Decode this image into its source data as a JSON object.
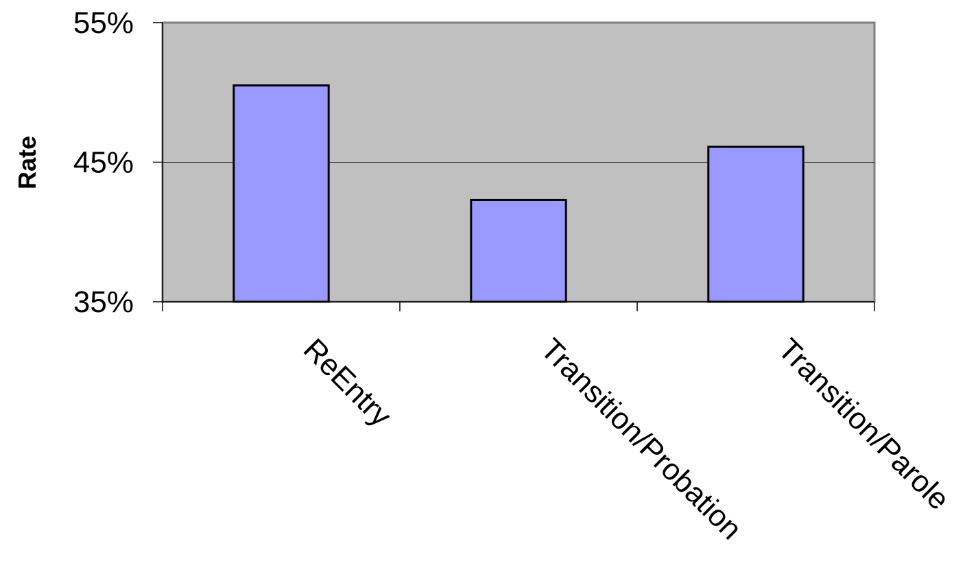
{
  "chart_data": {
    "type": "bar",
    "title": "",
    "xlabel": "",
    "ylabel": "Rate",
    "categories": [
      "ReEntry",
      "Transition/Probation",
      "Transition/Parole"
    ],
    "values": [
      50.5,
      42.3,
      46.1
    ],
    "ylim": [
      35,
      55
    ],
    "yticks": [
      35,
      45,
      55
    ],
    "ytick_labels": [
      "35%",
      "45%",
      "55%"
    ],
    "grid": true,
    "legend": "none",
    "colors": {
      "bar_fill": "#9999ff",
      "bar_stroke": "#000000",
      "plot_background": "#c0c0c0",
      "plot_border": "#808080",
      "gridline": "#000000"
    }
  }
}
